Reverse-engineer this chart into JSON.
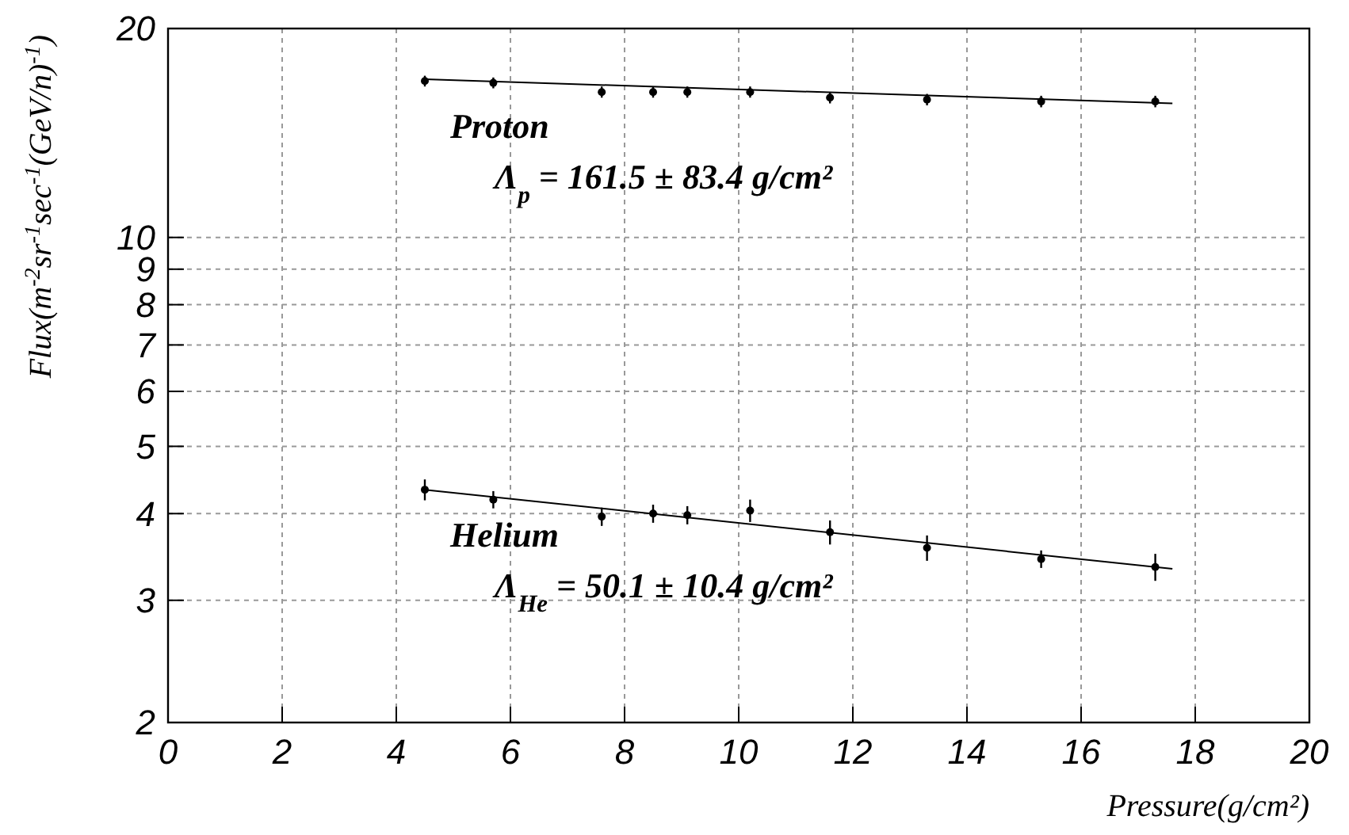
{
  "chart_data": {
    "type": "scatter",
    "xlabel": "Pressure(g/cm²)",
    "ylabel": "Flux(m$^{-2}$sr$^{-1}$sec$^{-1}$(GeV/n)$^{-1}$)",
    "xlim": [
      0,
      20
    ],
    "xticks": [
      0,
      2,
      4,
      6,
      8,
      10,
      12,
      14,
      16,
      18,
      20
    ],
    "ylim": [
      2,
      20
    ],
    "yticks": [
      2,
      3,
      4,
      5,
      6,
      7,
      8,
      9,
      10,
      20
    ],
    "log": true,
    "grid": true,
    "line_style": "solid",
    "series": [
      {
        "name": "Proton",
        "marker": "circle",
        "color": "#000000",
        "x": [
          4.5,
          5.7,
          7.6,
          8.5,
          9.1,
          10.2,
          11.6,
          13.3,
          15.3,
          17.3
        ],
        "values": [
          16.8,
          16.7,
          16.2,
          16.2,
          16.2,
          16.2,
          15.9,
          15.8,
          15.7,
          15.7
        ],
        "errors": [
          0.3,
          0.3,
          0.3,
          0.3,
          0.3,
          0.3,
          0.3,
          0.3,
          0.3,
          0.3
        ]
      },
      {
        "name": "Helium",
        "marker": "circle",
        "color": "#000000",
        "x": [
          4.5,
          5.7,
          7.6,
          8.5,
          9.1,
          10.2,
          11.6,
          13.3,
          15.3,
          17.3
        ],
        "values": [
          4.33,
          4.19,
          3.96,
          4.0,
          3.98,
          4.04,
          3.76,
          3.57,
          3.44,
          3.35
        ],
        "errors": [
          0.15,
          0.12,
          0.12,
          0.12,
          0.12,
          0.15,
          0.15,
          0.15,
          0.1,
          0.15
        ]
      },
      {
        "type": "line",
        "color": "#000000",
        "x": [
          4.5,
          17.6
        ],
        "values": [
          16.9,
          15.6
        ]
      },
      {
        "type": "line",
        "color": "#000000",
        "x": [
          4.5,
          17.6
        ],
        "values": [
          4.33,
          3.33
        ]
      }
    ],
    "annotations": [
      "Λ$_{p}$ = 161.5 ± 83.4 g/cm²",
      "Λ$_{He}$ = 50.1 ± 10.4 g/cm²"
    ]
  }
}
